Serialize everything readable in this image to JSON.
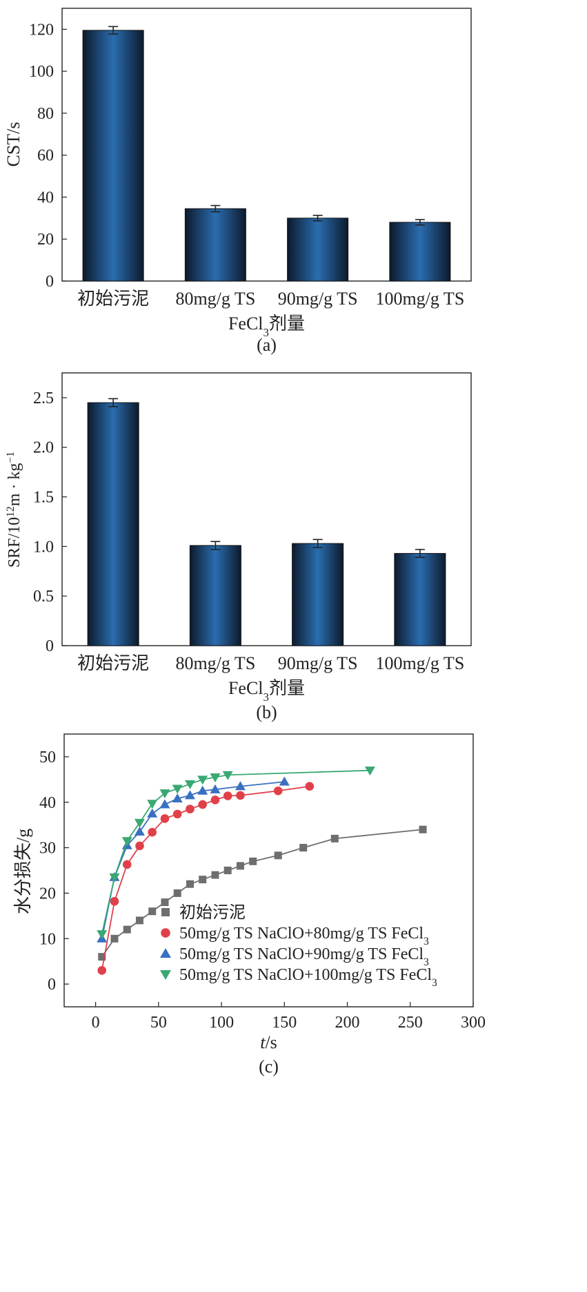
{
  "chart_data": [
    {
      "type": "bar",
      "panel_label": "(a)",
      "ylabel": "CST/s",
      "xlabel": [
        "FeCl",
        "3",
        "剂量"
      ],
      "categories": [
        "初始污泥",
        "80mg/g TS",
        "90mg/g TS",
        "100mg/g TS"
      ],
      "values": [
        119.5,
        34.5,
        30.0,
        28.0
      ],
      "errors": [
        1.8,
        1.5,
        1.3,
        1.3
      ],
      "ylim": [
        0,
        130
      ],
      "yticks": [
        0,
        20,
        40,
        60,
        80,
        100,
        120
      ],
      "ytick_labels": [
        "0",
        "20",
        "40",
        "60",
        "80",
        "100",
        "120"
      ],
      "grid": false,
      "bar_colors": {
        "edge": "#0d1a2c",
        "center": "#2a6db0"
      }
    },
    {
      "type": "bar",
      "panel_label": "(b)",
      "ylabel": [
        "SRF/10",
        "12",
        "m · kg",
        "−1"
      ],
      "xlabel": [
        "FeCl",
        "3",
        "剂量"
      ],
      "categories": [
        "初始污泥",
        "80mg/g TS",
        "90mg/g TS",
        "100mg/g TS"
      ],
      "values": [
        2.45,
        1.01,
        1.03,
        0.93
      ],
      "errors": [
        0.04,
        0.04,
        0.04,
        0.04
      ],
      "ylim": [
        0,
        2.75
      ],
      "yticks": [
        0,
        0.5,
        1.0,
        1.5,
        2.0,
        2.5
      ],
      "ytick_labels": [
        "0",
        "0.5",
        "1.0",
        "1.5",
        "2.0",
        "2.5"
      ],
      "grid": false,
      "bar_colors": {
        "edge": "#0d1a2c",
        "center": "#2a6db0"
      }
    },
    {
      "type": "line",
      "panel_label": "(c)",
      "ylabel": "水分损失/g",
      "xlabel": [
        "t",
        "/s"
      ],
      "xlim": [
        -25,
        300
      ],
      "ylim": [
        -5,
        55
      ],
      "xticks": [
        0,
        50,
        100,
        150,
        200,
        250,
        300
      ],
      "xtick_labels": [
        "0",
        "50",
        "100",
        "150",
        "200",
        "250",
        "300"
      ],
      "yticks": [
        0,
        10,
        20,
        30,
        40,
        50
      ],
      "ytick_labels": [
        "0",
        "10",
        "20",
        "30",
        "40",
        "50"
      ],
      "grid": false,
      "legend_position": "lower-right",
      "series": [
        {
          "name": "初始污泥",
          "marker": "square",
          "color": "#6e6e6e",
          "x": [
            5,
            15,
            25,
            35,
            45,
            55,
            65,
            75,
            85,
            95,
            105,
            115,
            125,
            145,
            165,
            190,
            260
          ],
          "y": [
            6,
            10,
            12,
            14,
            16,
            18,
            20,
            22,
            23,
            24,
            25,
            26,
            27,
            28.3,
            30,
            32,
            34
          ]
        },
        {
          "name": [
            "50mg/g TS NaClO+80mg/g TS FeCl",
            "3"
          ],
          "marker": "circle",
          "color": "#e0404a",
          "x": [
            5,
            15,
            25,
            35,
            45,
            55,
            65,
            75,
            85,
            95,
            105,
            115,
            145,
            170
          ],
          "y": [
            3,
            18.2,
            26.3,
            30.4,
            33.4,
            36.4,
            37.4,
            38.5,
            39.5,
            40.5,
            41.4,
            41.5,
            42.5,
            43.5
          ]
        },
        {
          "name": [
            "50mg/g TS NaClO+90mg/g TS FeCl",
            "3"
          ],
          "marker": "triangle-up",
          "color": "#3a70c0",
          "x": [
            5,
            15,
            25,
            35,
            45,
            55,
            65,
            75,
            85,
            95,
            115,
            150
          ],
          "y": [
            10,
            23.5,
            30.5,
            33.5,
            37.5,
            39.5,
            40.8,
            41.5,
            42.5,
            42.8,
            43.5,
            44.5
          ]
        },
        {
          "name": [
            "50mg/g TS NaClO+100mg/g TS FeCl",
            "3"
          ],
          "marker": "triangle-down",
          "color": "#3aa873",
          "x": [
            5,
            15,
            25,
            35,
            45,
            55,
            65,
            75,
            85,
            95,
            105,
            218
          ],
          "y": [
            11,
            23.5,
            31.5,
            35.5,
            39.7,
            42,
            43,
            44,
            45,
            45.5,
            46,
            47
          ]
        }
      ]
    }
  ]
}
